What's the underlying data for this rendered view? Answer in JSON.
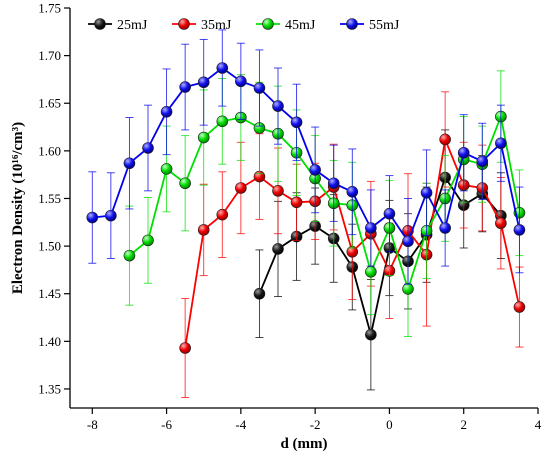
{
  "chart_data": {
    "type": "line",
    "xlabel": "d (mm)",
    "ylabel": "Electron Density (10¹⁶/cm³)",
    "xlim": [
      -8.6,
      4.0
    ],
    "ylim": [
      1.33,
      1.75
    ],
    "x_ticks": [
      -8,
      -6,
      -4,
      -2,
      0,
      2,
      4
    ],
    "y_ticks": [
      1.35,
      1.4,
      1.45,
      1.5,
      1.55,
      1.6,
      1.65,
      1.7,
      1.75
    ],
    "x_tick_labels": [
      "-8",
      "-6",
      "-4",
      "-2",
      "0",
      "2",
      "4"
    ],
    "y_tick_labels": [
      "1.35",
      "1.40",
      "1.45",
      "1.50",
      "1.55",
      "1.60",
      "1.65",
      "1.70",
      "1.75"
    ],
    "grid": false,
    "legend_position": "top",
    "series": [
      {
        "name": "25mJ",
        "color": "#000000",
        "x": [
          -3.5,
          -3,
          -2.5,
          -2,
          -1.5,
          -1,
          -0.5,
          0,
          0.5,
          1,
          1.5,
          2,
          2.5,
          3
        ],
        "y": [
          1.45,
          1.497,
          1.51,
          1.521,
          1.508,
          1.478,
          1.407,
          1.498,
          1.484,
          1.512,
          1.572,
          1.543,
          1.555,
          1.532
        ],
        "err": [
          0.046,
          0.05,
          0.046,
          0.04,
          0.046,
          0.045,
          0.058,
          0.05,
          0.05,
          0.05,
          0.05,
          0.045,
          0.04,
          0.045
        ]
      },
      {
        "name": "35mJ",
        "color": "#ff0000",
        "x": [
          -5.5,
          -5,
          -4.5,
          -4,
          -3.5,
          -3,
          -2.5,
          -2,
          -1.5,
          -1,
          -0.5,
          0,
          0.5,
          1,
          1.5,
          2,
          2.5,
          3,
          3.5
        ],
        "y": [
          1.393,
          1.517,
          1.533,
          1.561,
          1.573,
          1.558,
          1.546,
          1.547,
          1.562,
          1.494,
          1.513,
          1.474,
          1.516,
          1.491,
          1.612,
          1.564,
          1.561,
          1.524,
          1.436
        ],
        "err": [
          0.052,
          0.048,
          0.045,
          0.048,
          0.045,
          0.045,
          0.04,
          0.04,
          0.045,
          0.05,
          0.055,
          0.05,
          0.06,
          0.075,
          0.05,
          0.045,
          0.045,
          0.048,
          0.042
        ]
      },
      {
        "name": "45mJ",
        "color": "#00e000",
        "x": [
          -7,
          -6.5,
          -6,
          -5.5,
          -5,
          -4.5,
          -4,
          -3.5,
          -3,
          -2.5,
          -2,
          -1.5,
          -1,
          -0.5,
          0,
          0.5,
          1,
          1.5,
          2,
          2.5,
          3,
          3.5
        ],
        "y": [
          1.49,
          1.506,
          1.581,
          1.566,
          1.614,
          1.631,
          1.635,
          1.624,
          1.618,
          1.598,
          1.571,
          1.545,
          1.543,
          1.473,
          1.519,
          1.455,
          1.516,
          1.55,
          1.591,
          1.586,
          1.636,
          1.535
        ],
        "err": [
          0.052,
          0.045,
          0.045,
          0.05,
          0.05,
          0.045,
          0.045,
          0.048,
          0.05,
          0.045,
          0.045,
          0.045,
          0.045,
          0.045,
          0.05,
          0.05,
          0.05,
          0.045,
          0.045,
          0.04,
          0.048,
          0.045
        ]
      },
      {
        "name": "55mJ",
        "color": "#0000ee",
        "x": [
          -8,
          -7.5,
          -7,
          -6.5,
          -6,
          -5.5,
          -5,
          -4.5,
          -4,
          -3.5,
          -3,
          -2.5,
          -2,
          -1.5,
          -1,
          -0.5,
          0,
          0.5,
          1,
          1.5,
          2,
          2.5,
          3,
          3.5
        ],
        "y": [
          1.53,
          1.532,
          1.587,
          1.603,
          1.641,
          1.667,
          1.672,
          1.687,
          1.673,
          1.666,
          1.647,
          1.63,
          1.58,
          1.566,
          1.557,
          1.519,
          1.534,
          1.505,
          1.556,
          1.519,
          1.598,
          1.589,
          1.608,
          1.517
        ],
        "err": [
          0.048,
          0.045,
          0.048,
          0.045,
          0.045,
          0.045,
          0.045,
          0.04,
          0.04,
          0.04,
          0.04,
          0.04,
          0.045,
          0.04,
          0.045,
          0.04,
          0.04,
          0.045,
          0.045,
          0.04,
          0.04,
          0.04,
          0.04,
          0.045
        ]
      }
    ]
  }
}
